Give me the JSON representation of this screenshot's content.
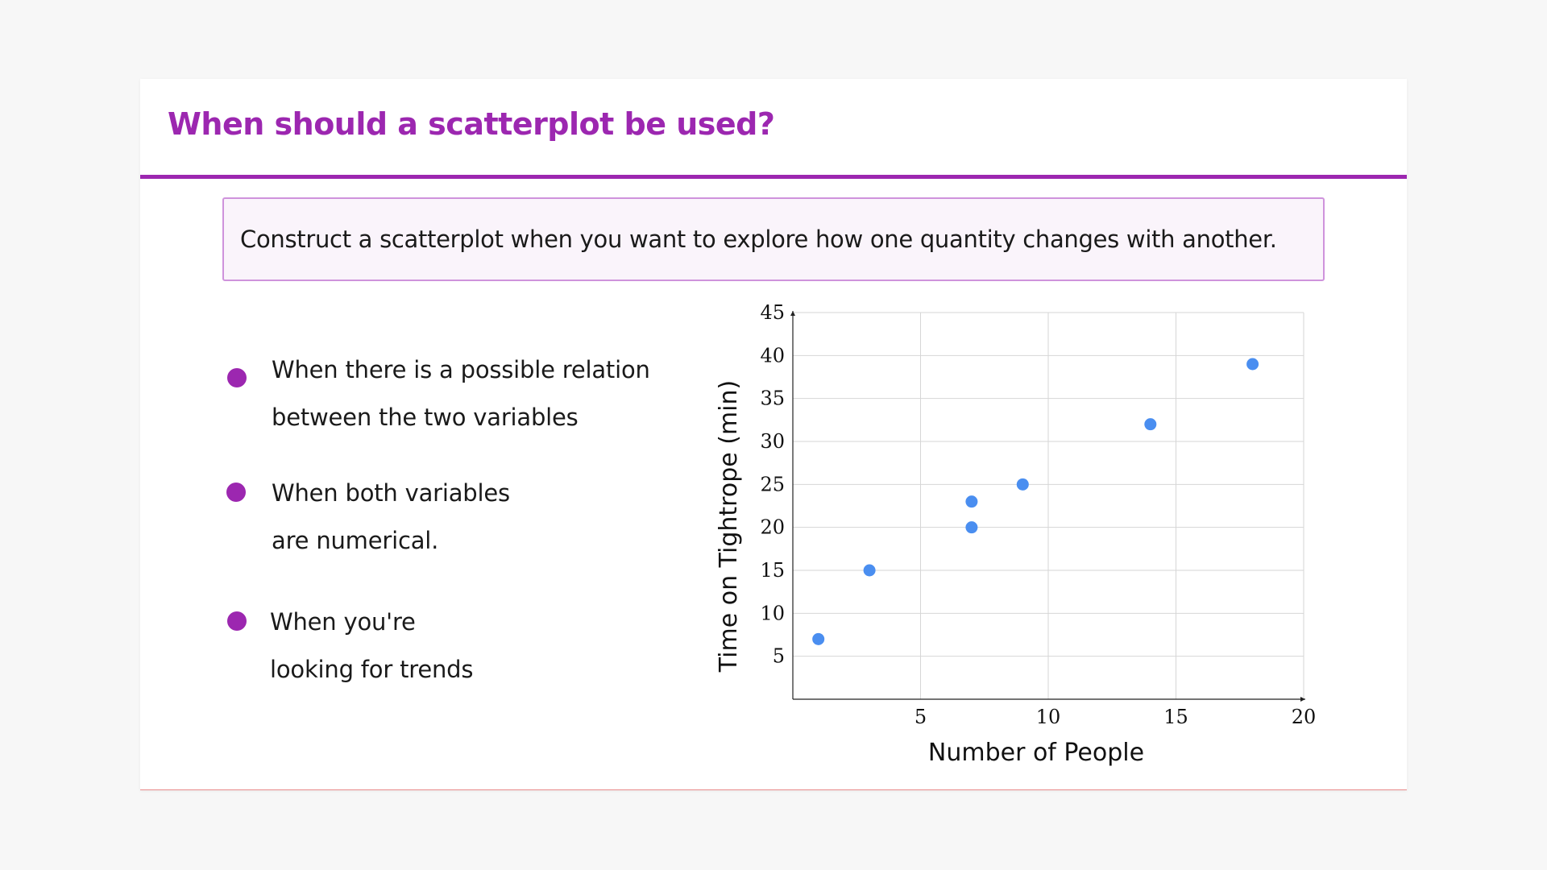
{
  "slide": {
    "title": "When should a scatterplot be used?",
    "callout": "Construct a scatterplot when you want to explore how one quantity changes with another.",
    "accent_color": "#9c27b0",
    "bullets": [
      {
        "lines": [
          "When there is a possible relation",
          "between the two variables"
        ]
      },
      {
        "lines": [
          "When both variables",
          "are numerical."
        ]
      },
      {
        "lines": [
          "When you're",
          "looking for trends"
        ]
      }
    ]
  },
  "chart_data": {
    "type": "scatter",
    "xlabel": "Number of People",
    "ylabel": "Time on Tightrope (min)",
    "xlim": [
      0,
      20
    ],
    "ylim": [
      0,
      45
    ],
    "xticks": [
      5,
      10,
      15,
      20
    ],
    "yticks": [
      5,
      10,
      15,
      20,
      25,
      30,
      35,
      40,
      45
    ],
    "grid": true,
    "point_color": "#4a8ef0",
    "points": [
      {
        "x": 1,
        "y": 7
      },
      {
        "x": 3,
        "y": 15
      },
      {
        "x": 7,
        "y": 23
      },
      {
        "x": 7,
        "y": 20
      },
      {
        "x": 9,
        "y": 25
      },
      {
        "x": 14,
        "y": 32
      },
      {
        "x": 18,
        "y": 39
      }
    ]
  }
}
